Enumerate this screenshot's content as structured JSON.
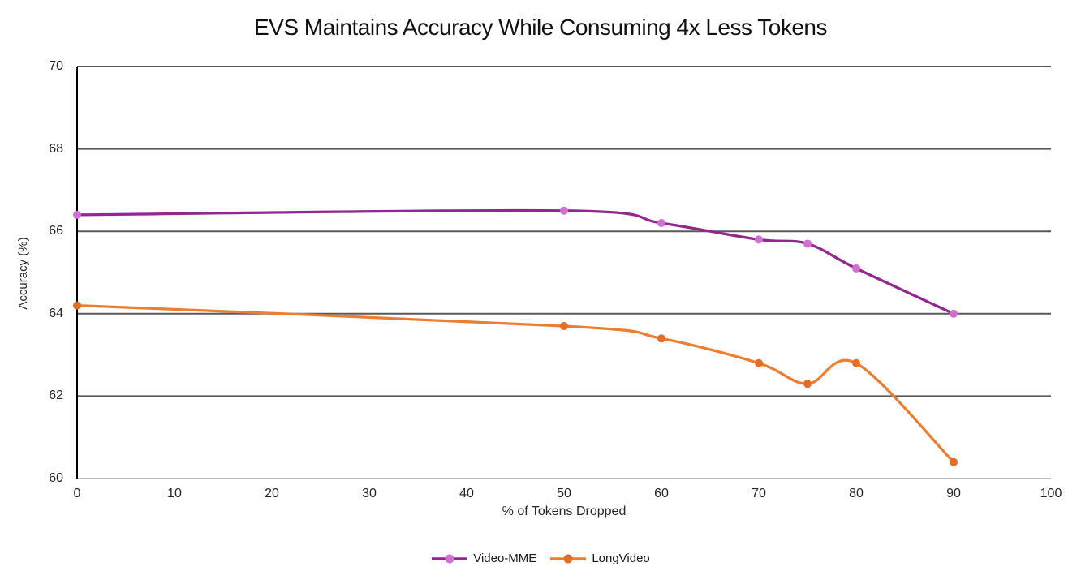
{
  "chart_data": {
    "type": "line",
    "title": "EVS Maintains Accuracy While Consuming 4x Less Tokens",
    "xlabel": "% of Tokens Dropped",
    "ylabel": "Accuracy (%)",
    "xlim": [
      0,
      100
    ],
    "ylim": [
      60,
      70
    ],
    "x_ticks": [
      0,
      10,
      20,
      30,
      40,
      50,
      60,
      70,
      80,
      90,
      100
    ],
    "y_ticks": [
      60,
      62,
      64,
      66,
      68,
      70
    ],
    "grid": "horizontal",
    "smoothed": true,
    "legend_position": "bottom-center",
    "series": [
      {
        "name": "Video-MME",
        "x": [
          0,
          50,
          60,
          70,
          75,
          80,
          90
        ],
        "y": [
          66.4,
          66.5,
          66.2,
          65.8,
          65.7,
          65.1,
          64.0
        ],
        "line_color": "#92278f",
        "marker_color": "#d36ed3"
      },
      {
        "name": "LongVideo",
        "x": [
          0,
          50,
          60,
          70,
          75,
          80,
          90
        ],
        "y": [
          64.2,
          63.7,
          63.4,
          62.8,
          62.3,
          62.8,
          60.4
        ],
        "line_color": "#ed7d31",
        "marker_color": "#e56d24"
      }
    ],
    "colors": {
      "gridline": "#595959",
      "y_axis_line": "#000000",
      "x_axis_line": "#bfbfbf",
      "tick_text": "#262626",
      "title_text": "#111111"
    }
  }
}
